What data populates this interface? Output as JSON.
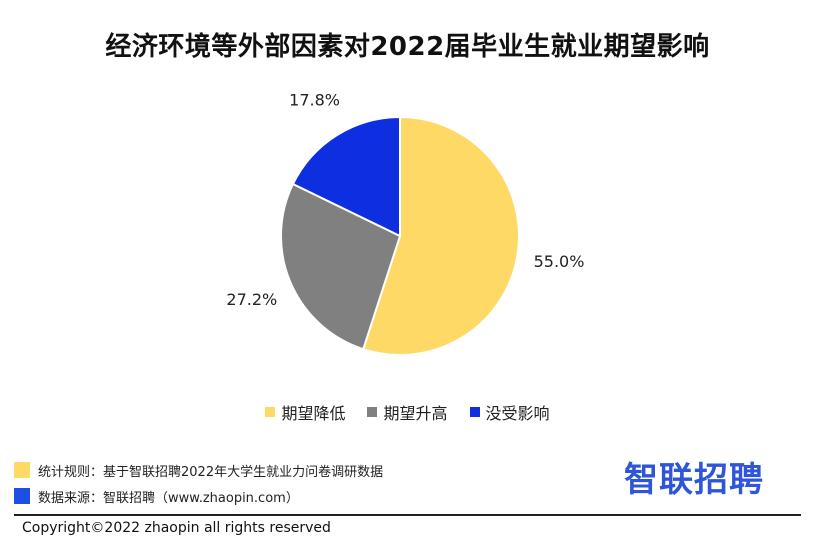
{
  "chart_data": {
    "type": "pie",
    "title": "经济环境等外部因素对2022届毕业生就业期望影响",
    "categories": [
      "期望降低",
      "期望升高",
      "没受影响"
    ],
    "values": [
      55.0,
      27.2,
      17.8
    ],
    "value_labels": [
      "55.0%",
      "27.2%",
      "17.8%"
    ],
    "colors": [
      "#ffd966",
      "#808080",
      "#0d2fe0"
    ],
    "start": "top, clockwise",
    "legend_position": "bottom"
  },
  "notes": {
    "rule": "统计规则：基于智联招聘2022年大学生就业力问卷调研数据",
    "rule_color": "#ffd966",
    "source": "数据来源：智联招聘（www.zhaopin.com）",
    "source_color": "#1f4fe0"
  },
  "brand": "智联招聘",
  "copyright": "Copyright©2022 zhaopin all rights reserved"
}
